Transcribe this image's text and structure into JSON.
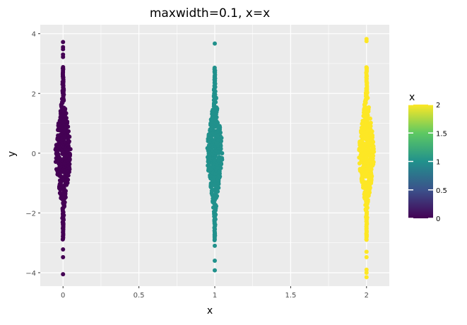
{
  "chart_data": {
    "type": "scatter",
    "subtype": "beeswarm",
    "title": "maxwidth=0.1, x=x",
    "xlabel": "x",
    "ylabel": "y",
    "xlim": [
      -0.15,
      2.15
    ],
    "ylim": [
      -4.45,
      4.3
    ],
    "x_ticks": [
      {
        "value": 0,
        "label": "0"
      },
      {
        "value": 0.5,
        "label": "0.5"
      },
      {
        "value": 1,
        "label": "1"
      },
      {
        "value": 1.5,
        "label": "1.5"
      },
      {
        "value": 2,
        "label": "2"
      }
    ],
    "y_ticks": [
      {
        "value": -4,
        "label": "−4"
      },
      {
        "value": -2,
        "label": "−2"
      },
      {
        "value": 0,
        "label": "0"
      },
      {
        "value": 2,
        "label": "2"
      },
      {
        "value": 4,
        "label": "4"
      }
    ],
    "grid": true,
    "max_width": 0.1,
    "groups": [
      {
        "x": 0,
        "y_range": [
          -4.05,
          3.72
        ],
        "color": "#440154",
        "outlier_y": [
          3.72,
          3.55,
          3.48,
          3.3,
          3.22,
          -3.22,
          -3.48,
          -4.05
        ]
      },
      {
        "x": 1,
        "y_range": [
          -3.92,
          3.67
        ],
        "color": "#21918c",
        "outlier_y": [
          3.67,
          -3.1,
          -3.6,
          -3.92
        ]
      },
      {
        "x": 2,
        "y_range": [
          -4.15,
          3.82
        ],
        "color": "#fde725",
        "outlier_y": [
          3.82,
          3.75,
          -3.3,
          -3.48,
          -3.9,
          -4.0,
          -4.15
        ]
      }
    ],
    "legend": {
      "title": "x",
      "position": "right",
      "type": "colorbar",
      "colormap": "viridis",
      "range": [
        0,
        2
      ],
      "ticks": [
        {
          "value": 0,
          "label": "0"
        },
        {
          "value": 0.5,
          "label": "0.5"
        },
        {
          "value": 1,
          "label": "1"
        },
        {
          "value": 1.5,
          "label": "1.5"
        },
        {
          "value": 2,
          "label": "2"
        }
      ],
      "colors": [
        "#440154",
        "#3b528b",
        "#21918c",
        "#5ec962",
        "#fde725"
      ]
    },
    "panel_background": "#ebebeb",
    "gridline_color": "#ffffff"
  }
}
